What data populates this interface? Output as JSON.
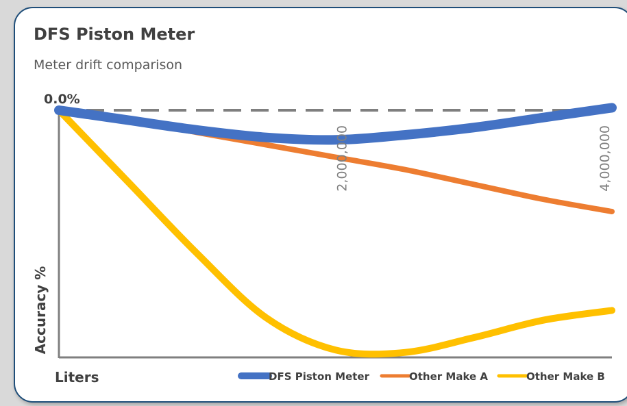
{
  "chart_data": {
    "type": "line",
    "title": "DFS Piston Meter",
    "subtitle": "Meter drift comparison",
    "xlabel": "Liters",
    "ylabel": "Accuracy %",
    "xlim": [
      0,
      4000000
    ],
    "ylim": [
      -1.0,
      0.0
    ],
    "x_ticks": [
      {
        "value": 2000000,
        "label": "2,000,000"
      },
      {
        "value": 4000000,
        "label": "4,000,000"
      }
    ],
    "y_ticks": [
      {
        "value": 0.0,
        "label": "0.0%"
      }
    ],
    "reference_line": {
      "y": 0.0,
      "style": "dashed"
    },
    "legend_position": "bottom-right",
    "series": [
      {
        "name": "DFS Piston Meter",
        "color": "#4472c4",
        "x": [
          0,
          500000,
          1000000,
          1500000,
          2000000,
          2500000,
          3000000,
          3500000,
          4000000
        ],
        "y": [
          0.0,
          -0.04,
          -0.08,
          -0.11,
          -0.12,
          -0.1,
          -0.07,
          -0.03,
          0.01
        ]
      },
      {
        "name": "Other Make A",
        "color": "#ed7d31",
        "x": [
          0,
          500000,
          1000000,
          1500000,
          2000000,
          2500000,
          3000000,
          3500000,
          4000000
        ],
        "y": [
          0.0,
          -0.04,
          -0.09,
          -0.14,
          -0.19,
          -0.24,
          -0.3,
          -0.36,
          -0.41
        ]
      },
      {
        "name": "Other Make B",
        "color": "#ffc000",
        "x": [
          0,
          500000,
          1000000,
          1500000,
          2000000,
          2500000,
          3000000,
          3500000,
          4000000
        ],
        "y": [
          0.0,
          -0.29,
          -0.58,
          -0.84,
          -0.97,
          -0.98,
          -0.92,
          -0.85,
          -0.81
        ]
      }
    ]
  }
}
